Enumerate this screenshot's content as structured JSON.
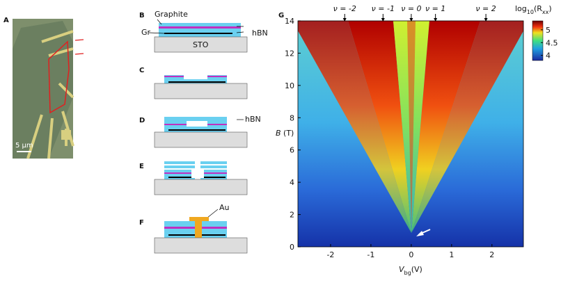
{
  "panels": {
    "a": {
      "label": "A",
      "scale_bar": "5 μm"
    },
    "b": {
      "label": "B",
      "graphite": "Graphite",
      "gr": "Gr",
      "hbn": "hBN",
      "substrate": "STO"
    },
    "c": {
      "label": "C"
    },
    "d": {
      "label": "D",
      "hbn": "hBN"
    },
    "e": {
      "label": "E"
    },
    "f": {
      "label": "F",
      "au": "Au"
    },
    "g": {
      "label": "G",
      "y_label": {
        "var": "B",
        "unit": "(T)"
      },
      "x_label": {
        "var": "V",
        "sub": "bg",
        "unit": "(V)"
      },
      "xlim": [
        -2.81,
        2.78
      ],
      "ylim": [
        0,
        14
      ],
      "xticks": [
        -2,
        -1,
        0,
        1,
        2
      ],
      "yticks": [
        0,
        2,
        4,
        6,
        8,
        10,
        12,
        14
      ],
      "filling_labels": [
        {
          "text": "ν = -2",
          "x": -1.65
        },
        {
          "text": "ν = -1",
          "x": -0.7
        },
        {
          "text": "ν = 0",
          "x": 0
        },
        {
          "text": "ν = 1",
          "x": 0.6
        },
        {
          "text": "ν = 2",
          "x": 1.85
        }
      ],
      "colorbar": {
        "title": {
          "log": "log",
          "base": "10",
          "open": "(R",
          "sub": "xx",
          "close": ")"
        },
        "lim": [
          3.8,
          5.35
        ],
        "ticks": [
          4,
          4.5,
          5
        ]
      }
    }
  }
}
